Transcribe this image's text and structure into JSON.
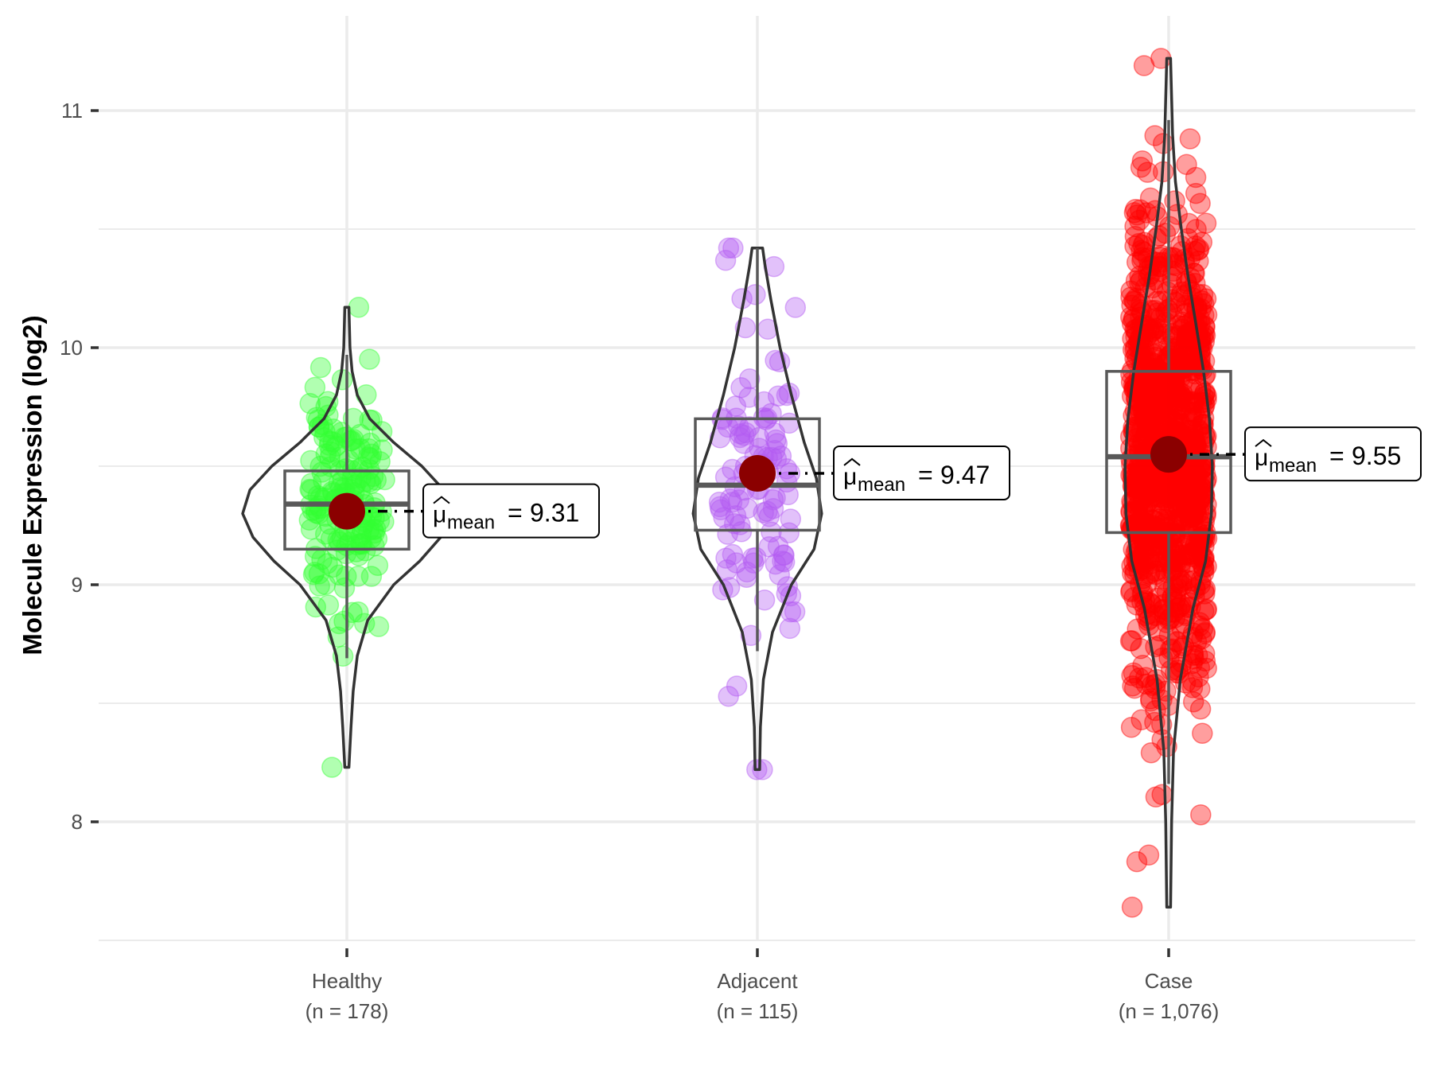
{
  "chart_data": {
    "type": "violin-box-scatter",
    "title": "",
    "xlabel": "",
    "ylabel": "Molecule Expression (log2)",
    "ylim": [
      7.5,
      11.35
    ],
    "yticks": [
      8,
      9,
      10,
      11
    ],
    "ytick_labels": [
      "8",
      "9",
      "10",
      "11"
    ],
    "minor_gridlines": [
      7.5,
      8.5,
      9.5,
      10.5
    ],
    "grid": true,
    "legend": "none",
    "mean_label_prefix": "μ",
    "mean_label_sub": "mean",
    "groups": [
      {
        "name": "Healthy",
        "n_label": "(n = 178)",
        "n": 178,
        "color": "#33ff33",
        "mean": 9.31,
        "mean_label": "9.31",
        "q1": 9.15,
        "median": 9.34,
        "q3": 9.48,
        "whisker_low": 8.69,
        "whisker_high": 9.97,
        "min": 8.23,
        "max": 10.17,
        "density": [
          [
            8.23,
            0.02
          ],
          [
            8.4,
            0.04
          ],
          [
            8.55,
            0.06
          ],
          [
            8.7,
            0.1
          ],
          [
            8.85,
            0.2
          ],
          [
            9.0,
            0.45
          ],
          [
            9.1,
            0.7
          ],
          [
            9.2,
            0.9
          ],
          [
            9.3,
            1.0
          ],
          [
            9.4,
            0.93
          ],
          [
            9.5,
            0.72
          ],
          [
            9.6,
            0.45
          ],
          [
            9.7,
            0.22
          ],
          [
            9.8,
            0.1
          ],
          [
            9.9,
            0.05
          ],
          [
            10.0,
            0.03
          ],
          [
            10.17,
            0.02
          ]
        ]
      },
      {
        "name": "Adjacent",
        "n_label": "(n = 115)",
        "n": 115,
        "color": "#b35cf2",
        "mean": 9.47,
        "mean_label": "9.47",
        "q1": 9.23,
        "median": 9.42,
        "q3": 9.7,
        "whisker_low": 8.72,
        "whisker_high": 10.42,
        "min": 8.22,
        "max": 10.42,
        "density": [
          [
            8.22,
            0.03
          ],
          [
            8.4,
            0.04
          ],
          [
            8.6,
            0.08
          ],
          [
            8.8,
            0.2
          ],
          [
            9.0,
            0.45
          ],
          [
            9.15,
            0.75
          ],
          [
            9.3,
            0.85
          ],
          [
            9.45,
            0.78
          ],
          [
            9.6,
            0.62
          ],
          [
            9.8,
            0.45
          ],
          [
            10.0,
            0.3
          ],
          [
            10.2,
            0.18
          ],
          [
            10.35,
            0.1
          ],
          [
            10.42,
            0.07
          ]
        ]
      },
      {
        "name": "Case",
        "n_label": "(n = 1,076)",
        "n": 1076,
        "color": "#ff0000",
        "mean": 9.55,
        "mean_label": "9.55",
        "q1": 9.22,
        "median": 9.54,
        "q3": 9.9,
        "whisker_low": 8.16,
        "whisker_high": 10.96,
        "min": 7.64,
        "max": 11.22,
        "density": [
          [
            7.64,
            0.02
          ],
          [
            8.0,
            0.03
          ],
          [
            8.3,
            0.05
          ],
          [
            8.6,
            0.12
          ],
          [
            8.9,
            0.25
          ],
          [
            9.1,
            0.38
          ],
          [
            9.3,
            0.44
          ],
          [
            9.5,
            0.45
          ],
          [
            9.7,
            0.42
          ],
          [
            9.9,
            0.36
          ],
          [
            10.1,
            0.28
          ],
          [
            10.3,
            0.2
          ],
          [
            10.5,
            0.13
          ],
          [
            10.7,
            0.07
          ],
          [
            10.9,
            0.04
          ],
          [
            11.22,
            0.02
          ]
        ]
      }
    ]
  }
}
